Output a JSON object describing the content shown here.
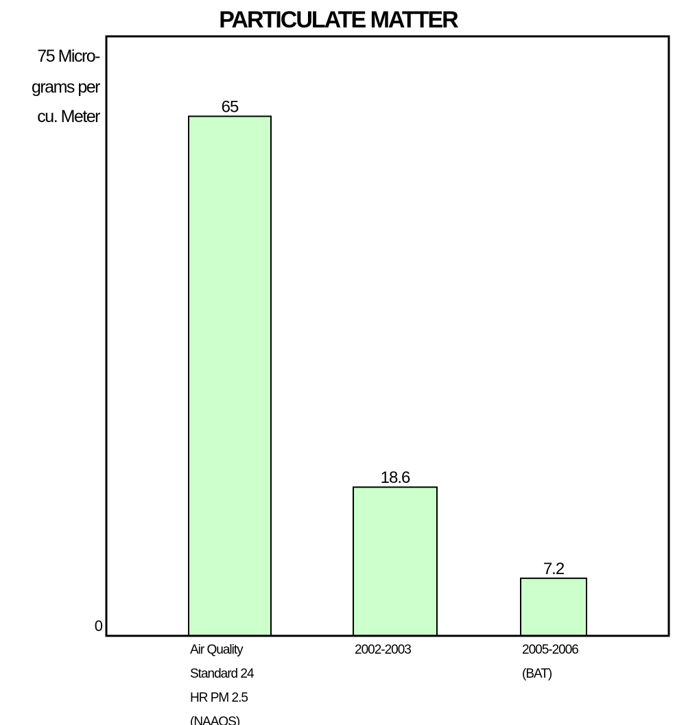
{
  "chart_data": {
    "type": "bar",
    "title": "PARTICULATE MATTER",
    "ylabel_lines": [
      "75 Micro-",
      "grams per",
      "cu. Meter"
    ],
    "ylim": [
      0,
      75
    ],
    "ytick_zero": "0",
    "categories": [
      [
        "Air Quality",
        "Standard 24",
        "HR PM 2.5",
        "(NAAQS)"
      ],
      [
        "2002-2003"
      ],
      [
        "2005-2006",
        "(BAT)"
      ]
    ],
    "values": [
      65,
      18.6,
      7.2
    ],
    "data_labels": [
      "65",
      "18.6",
      "7.2"
    ],
    "bar_color": "#ccffcc",
    "grid": false
  }
}
